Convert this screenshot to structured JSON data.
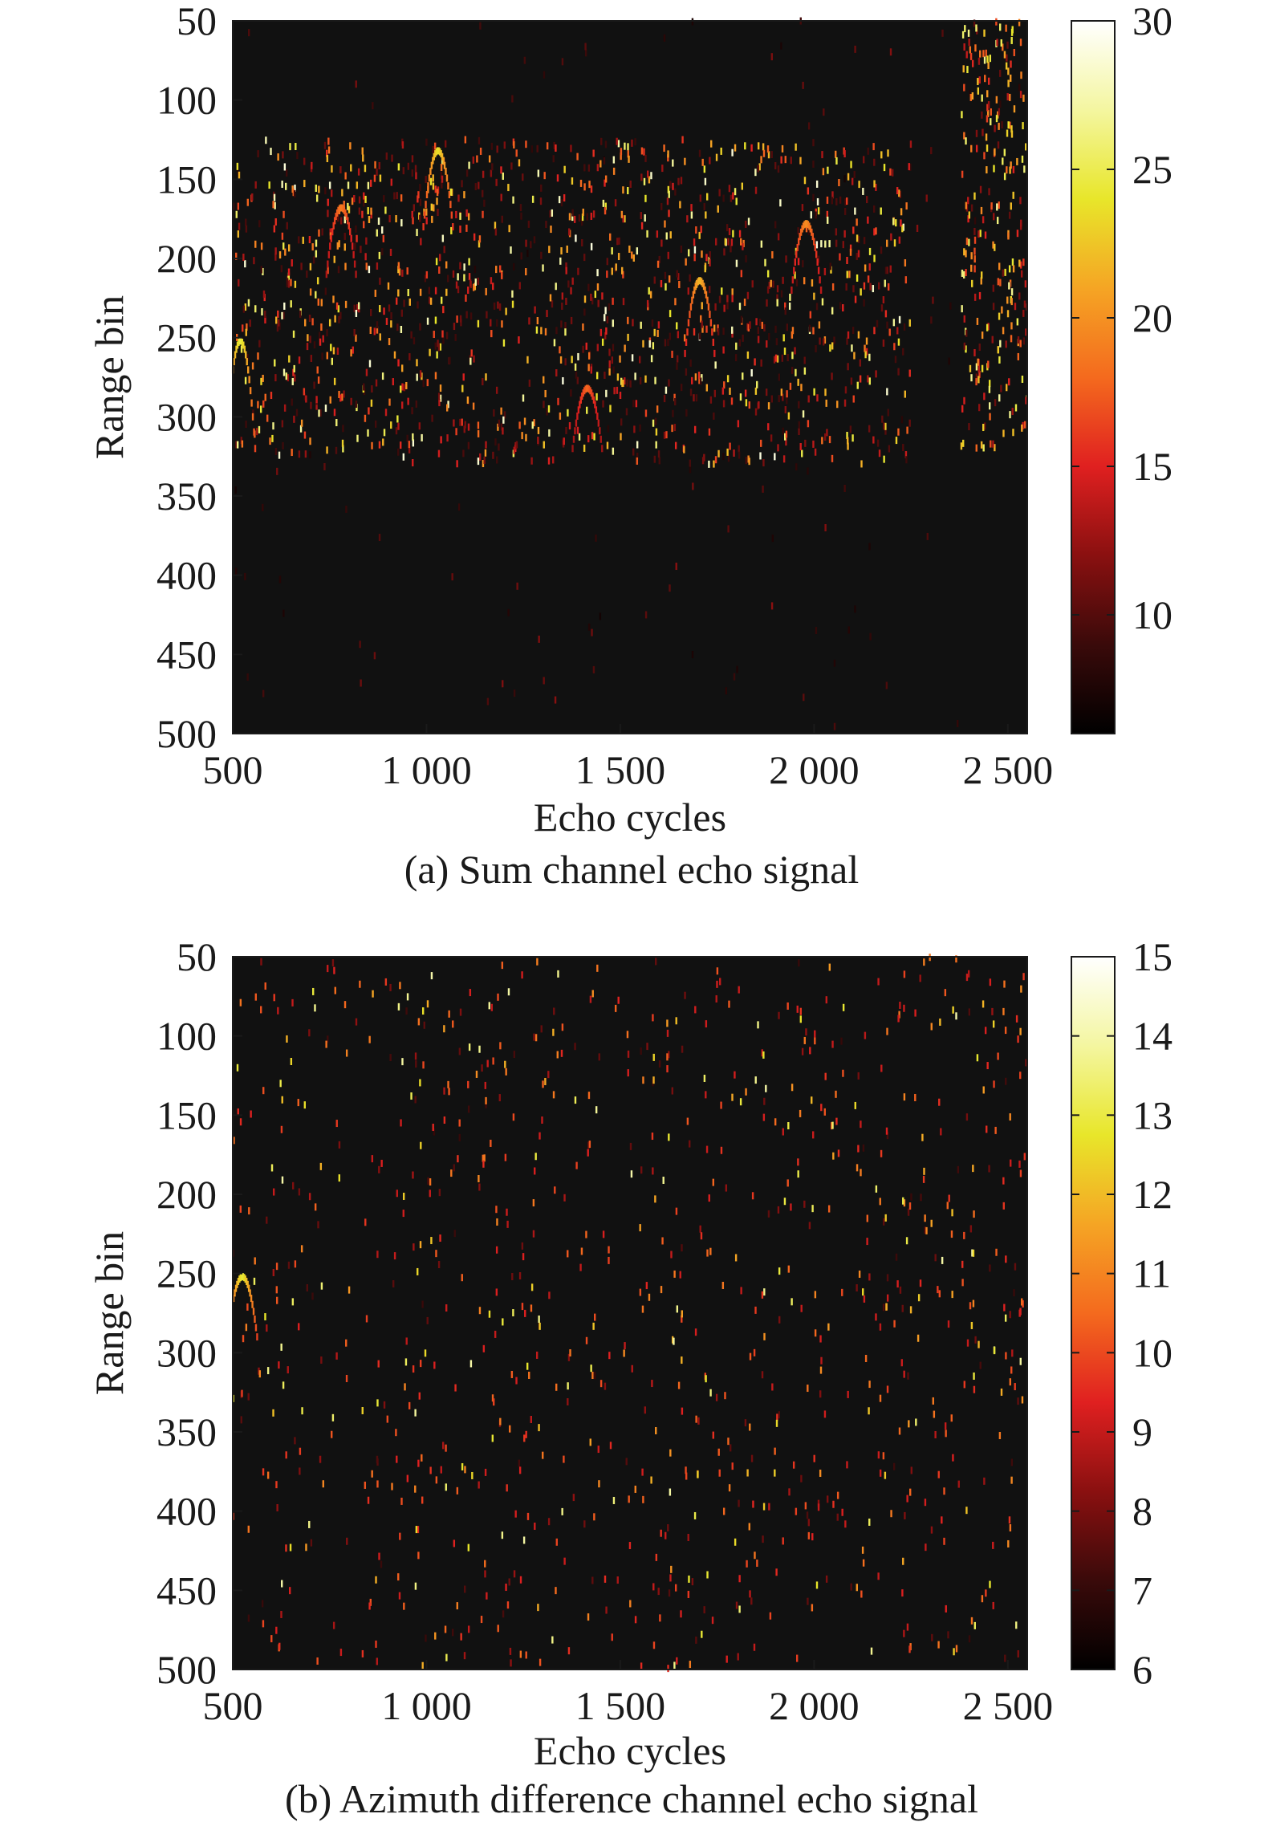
{
  "colormap": [
    "#000000",
    "#3a0a0a",
    "#8a1010",
    "#e02020",
    "#f46a1e",
    "#f5a524",
    "#e8e62a",
    "#f4f6a0",
    "#ffffff"
  ],
  "chart_data": [
    {
      "type": "heatmap",
      "caption": "(a) Sum channel echo signal",
      "xlabel": "Echo cycles",
      "ylabel": "Range bin",
      "xlim": [
        500,
        2550
      ],
      "ylim": [
        50,
        500
      ],
      "y_reversed": true,
      "xticks": [
        500,
        1000,
        1500,
        2000,
        2500
      ],
      "xtick_labels": [
        "500",
        "1 000",
        "1 500",
        "2 000",
        "2 500"
      ],
      "yticks": [
        50,
        100,
        150,
        200,
        250,
        300,
        350,
        400,
        450,
        500
      ],
      "ytick_labels": [
        "50",
        "100",
        "150",
        "200",
        "250",
        "300",
        "350",
        "400",
        "450",
        "500"
      ],
      "colorbar": {
        "range": [
          6,
          30
        ],
        "ticks": [
          10,
          15,
          20,
          25,
          30
        ],
        "tick_labels": [
          "10",
          "15",
          "20",
          "25",
          "30"
        ]
      },
      "background_level": 6,
      "signal_band": {
        "x_range": [
          500,
          2250
        ],
        "y_range": [
          125,
          330
        ],
        "density": 0.55
      },
      "strong_arcs": [
        {
          "x": 520,
          "y_top": 252,
          "y_bottom": 320,
          "peak": 25
        },
        {
          "x": 1030,
          "y_top": 132,
          "y_bottom": 180,
          "peak": 24
        },
        {
          "x": 780,
          "y_top": 168,
          "y_bottom": 210,
          "peak": 19
        },
        {
          "x": 1415,
          "y_top": 282,
          "y_bottom": 320,
          "peak": 18
        },
        {
          "x": 1705,
          "y_top": 214,
          "y_bottom": 260,
          "peak": 22
        },
        {
          "x": 1980,
          "y_top": 178,
          "y_bottom": 220,
          "peak": 20
        }
      ],
      "edge_cluster": {
        "x_range": [
          2380,
          2550
        ],
        "y_range": [
          50,
          320
        ],
        "peak": 27
      },
      "sparse_noise": {
        "density": 0.02,
        "max": 12
      }
    },
    {
      "type": "heatmap",
      "caption": "(b) Azimuth difference channel echo signal",
      "xlabel": "Echo cycles",
      "ylabel": "Range bin",
      "xlim": [
        500,
        2550
      ],
      "ylim": [
        50,
        500
      ],
      "y_reversed": true,
      "xticks": [
        500,
        1000,
        1500,
        2000,
        2500
      ],
      "xtick_labels": [
        "500",
        "1 000",
        "1 500",
        "2 000",
        "2 500"
      ],
      "yticks": [
        50,
        100,
        150,
        200,
        250,
        300,
        350,
        400,
        450,
        500
      ],
      "ytick_labels": [
        "50",
        "100",
        "150",
        "200",
        "250",
        "300",
        "350",
        "400",
        "450",
        "500"
      ],
      "colorbar": {
        "range": [
          6,
          15
        ],
        "ticks": [
          6,
          7,
          8,
          9,
          10,
          11,
          12,
          13,
          14,
          15
        ],
        "tick_labels": [
          "6",
          "7",
          "8",
          "9",
          "10",
          "11",
          "12",
          "13",
          "14",
          "15"
        ]
      },
      "background_level": 6,
      "signal_band": {
        "x_range": [
          500,
          2550
        ],
        "y_range": [
          50,
          500
        ],
        "density": 0.18
      },
      "strong_arcs": [
        {
          "x": 525,
          "y_top": 252,
          "y_bottom": 290,
          "peak": 13
        }
      ],
      "sparse_noise": {
        "density": 0.06,
        "max": 11
      }
    }
  ]
}
